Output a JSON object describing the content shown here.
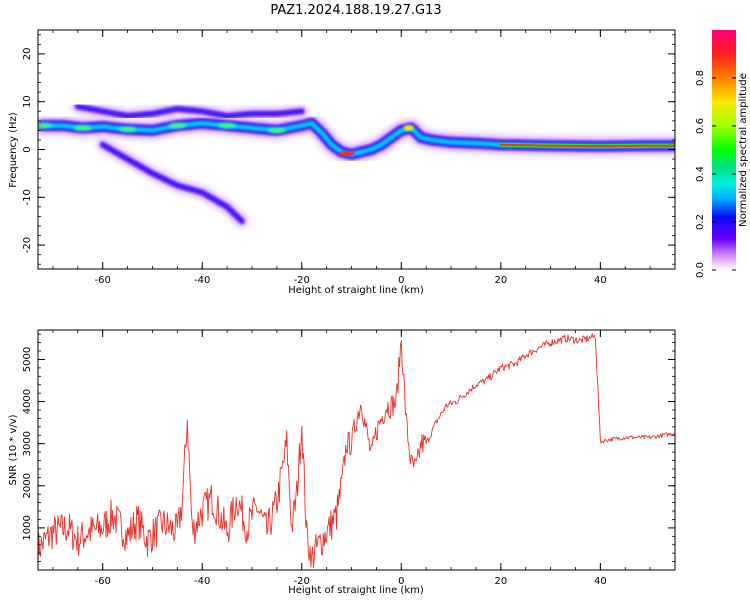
{
  "title": "PAZ1.2024.188.19.27.G13",
  "chart_data": [
    {
      "type": "heatmap",
      "xlabel": "Height of straight line (km)",
      "ylabel": "Frequency (Hz)",
      "xlim": [
        -73,
        55
      ],
      "ylim": [
        -25,
        25
      ],
      "xticks": [
        -60,
        -40,
        -20,
        0,
        20,
        40
      ],
      "yticks": [
        -20,
        -10,
        0,
        10,
        20
      ],
      "colorbar": {
        "label": "Normalized spectral amplitude",
        "range": [
          0.0,
          1.0
        ],
        "ticks": [
          0.0,
          0.2,
          0.4,
          0.6,
          0.8
        ],
        "colormap": "gist_ncar"
      },
      "ridges": [
        {
          "name": "main",
          "points": [
            [
              -72,
              5
            ],
            [
              -68,
              5
            ],
            [
              -64,
              4.5
            ],
            [
              -60,
              4.8
            ],
            [
              -55,
              4.2
            ],
            [
              -50,
              4.0
            ],
            [
              -45,
              5.0
            ],
            [
              -40,
              5.5
            ],
            [
              -35,
              5.0
            ],
            [
              -30,
              4.5
            ],
            [
              -25,
              4.0
            ],
            [
              -20,
              5.0
            ],
            [
              -18,
              5.5
            ],
            [
              -16,
              3.5
            ],
            [
              -14,
              1.0
            ],
            [
              -12,
              -0.5
            ],
            [
              -10,
              -1.0
            ],
            [
              -8,
              -0.5
            ],
            [
              -6,
              0.0
            ],
            [
              -4,
              1.0
            ],
            [
              -2,
              2.5
            ],
            [
              0,
              4.0
            ],
            [
              2,
              4.5
            ],
            [
              4,
              2.5
            ],
            [
              6,
              2.0
            ],
            [
              10,
              1.5
            ],
            [
              15,
              1.3
            ],
            [
              20,
              1.0
            ],
            [
              30,
              0.8
            ],
            [
              40,
              0.7
            ],
            [
              50,
              0.8
            ],
            [
              55,
              0.8
            ]
          ]
        },
        {
          "name": "upper",
          "points": [
            [
              -65,
              9
            ],
            [
              -60,
              8
            ],
            [
              -55,
              7
            ],
            [
              -50,
              7.5
            ],
            [
              -45,
              8.5
            ],
            [
              -40,
              8.0
            ],
            [
              -35,
              7.0
            ],
            [
              -30,
              7.5
            ],
            [
              -25,
              7.5
            ],
            [
              -20,
              8.0
            ]
          ]
        },
        {
          "name": "descending",
          "points": [
            [
              -60,
              1
            ],
            [
              -55,
              -2
            ],
            [
              -50,
              -5
            ],
            [
              -45,
              -7.5
            ],
            [
              -40,
              -9
            ],
            [
              -35,
              -12
            ],
            [
              -32,
              -15
            ]
          ]
        }
      ]
    },
    {
      "type": "line",
      "xlabel": "Height of straight line (km)",
      "ylabel": "SNR (10 * v/v)",
      "xlim": [
        -73,
        55
      ],
      "ylim": [
        0,
        5700
      ],
      "xticks": [
        -60,
        -40,
        -20,
        0,
        20,
        40
      ],
      "yticks": [
        1000,
        2000,
        3000,
        4000,
        5000
      ],
      "color": "#e8322a",
      "points": [
        [
          -73,
          500
        ],
        [
          -70,
          900
        ],
        [
          -67,
          1000
        ],
        [
          -65,
          700
        ],
        [
          -63,
          900
        ],
        [
          -60,
          1000
        ],
        [
          -58,
          1300
        ],
        [
          -55,
          800
        ],
        [
          -53,
          1200
        ],
        [
          -51,
          700
        ],
        [
          -48,
          1100
        ],
        [
          -45,
          900
        ],
        [
          -44,
          1600
        ],
        [
          -43,
          3600
        ],
        [
          -42,
          900
        ],
        [
          -40,
          1400
        ],
        [
          -38,
          1700
        ],
        [
          -35,
          900
        ],
        [
          -33,
          1700
        ],
        [
          -31,
          1000
        ],
        [
          -29,
          1500
        ],
        [
          -27,
          900
        ],
        [
          -25,
          1600
        ],
        [
          -23,
          3000
        ],
        [
          -22,
          1000
        ],
        [
          -21,
          1800
        ],
        [
          -20,
          3500
        ],
        [
          -19,
          800
        ],
        [
          -18,
          300
        ],
        [
          -17,
          500
        ],
        [
          -16,
          700
        ],
        [
          -15,
          900
        ],
        [
          -13,
          1300
        ],
        [
          -12,
          2000
        ],
        [
          -11,
          3000
        ],
        [
          -10,
          3000
        ],
        [
          -9,
          3600
        ],
        [
          -8,
          4000
        ],
        [
          -7,
          3300
        ],
        [
          -6,
          2700
        ],
        [
          -5,
          3300
        ],
        [
          -4,
          3600
        ],
        [
          -3,
          3900
        ],
        [
          -2,
          3900
        ],
        [
          -1,
          4000
        ],
        [
          0,
          5500
        ],
        [
          1,
          3500
        ],
        [
          2,
          2500
        ],
        [
          3,
          2400
        ],
        [
          4,
          3000
        ],
        [
          5,
          3000
        ],
        [
          7,
          3500
        ],
        [
          9,
          3900
        ],
        [
          11,
          4000
        ],
        [
          13,
          4200
        ],
        [
          15,
          4400
        ],
        [
          17,
          4500
        ],
        [
          20,
          4800
        ],
        [
          23,
          4900
        ],
        [
          25,
          5100
        ],
        [
          28,
          5300
        ],
        [
          30,
          5400
        ],
        [
          33,
          5500
        ],
        [
          36,
          5450
        ],
        [
          39,
          5550
        ],
        [
          40,
          3050
        ],
        [
          42,
          3100
        ],
        [
          45,
          3150
        ],
        [
          48,
          3150
        ],
        [
          50,
          3150
        ],
        [
          55,
          3250
        ]
      ]
    }
  ]
}
